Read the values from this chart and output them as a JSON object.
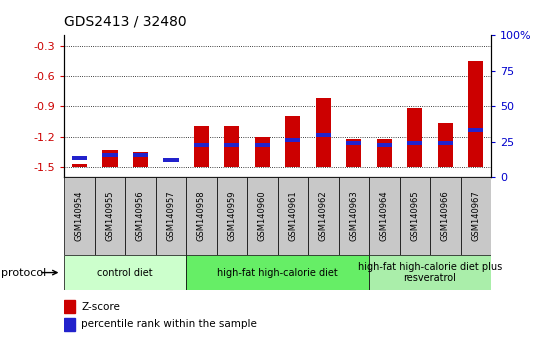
{
  "title": "GDS2413 / 32480",
  "samples": [
    "GSM140954",
    "GSM140955",
    "GSM140956",
    "GSM140957",
    "GSM140958",
    "GSM140959",
    "GSM140960",
    "GSM140961",
    "GSM140962",
    "GSM140963",
    "GSM140964",
    "GSM140965",
    "GSM140966",
    "GSM140967"
  ],
  "zscore": [
    -1.47,
    -1.33,
    -1.35,
    -1.5,
    -1.1,
    -1.1,
    -1.2,
    -1.0,
    -0.82,
    -1.22,
    -1.22,
    -0.92,
    -1.07,
    -0.45
  ],
  "percentile": [
    7,
    10,
    10,
    6,
    18,
    18,
    18,
    22,
    26,
    20,
    18,
    20,
    20,
    30
  ],
  "ylim_left": [
    -1.6,
    -0.2
  ],
  "ylim_right": [
    0,
    100
  ],
  "yticks_left": [
    -1.5,
    -1.2,
    -0.9,
    -0.6,
    -0.3
  ],
  "yticks_right": [
    0,
    25,
    50,
    75,
    100
  ],
  "zscore_color": "#cc0000",
  "percentile_color": "#2222cc",
  "groups": [
    {
      "label": "control diet",
      "start": 0,
      "end": 4,
      "color": "#ccffcc"
    },
    {
      "label": "high-fat high-calorie diet",
      "start": 4,
      "end": 10,
      "color": "#66ee66"
    },
    {
      "label": "high-fat high-calorie diet plus\nresveratrol",
      "start": 10,
      "end": 14,
      "color": "#aaeeaa"
    }
  ],
  "protocol_label": "protocol",
  "legend_zscore": "Z-score",
  "legend_percentile": "percentile rank within the sample",
  "tick_label_color_left": "#cc0000",
  "tick_label_color_right": "#0000cc",
  "label_bg_color": "#c8c8c8",
  "bar_width": 0.5
}
